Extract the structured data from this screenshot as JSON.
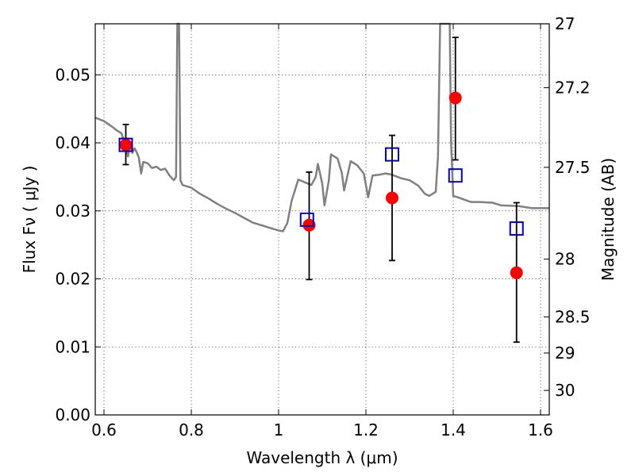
{
  "chart_data": {
    "type": "scatter",
    "title": "",
    "xlabel": "Wavelength  λ (μm)",
    "ylabel": "Flux  Fν  ( μJy )",
    "y2label": "Magnitude (AB)",
    "xlim": [
      0.58,
      1.62
    ],
    "ylim": [
      0.0,
      0.0575
    ],
    "grid": true,
    "x_ticks": [
      0.6,
      0.8,
      1.0,
      1.2,
      1.4,
      1.6
    ],
    "x_tick_labels": [
      "0.6",
      "0.8",
      "1",
      "1.2",
      "1.4",
      "1.6"
    ],
    "y_ticks": [
      0.0,
      0.01,
      0.02,
      0.03,
      0.04,
      0.05
    ],
    "y_tick_labels": [
      "0.00",
      "0.01",
      "0.02",
      "0.03",
      "0.04",
      "0.05"
    ],
    "y2_ticks": [
      {
        "mag": "27",
        "flux": 0.0575
      },
      {
        "mag": "27.2",
        "flux": 0.0481
      },
      {
        "mag": "27.5",
        "flux": 0.0364
      },
      {
        "mag": "28",
        "flux": 0.0229
      },
      {
        "mag": "28.5",
        "flux": 0.0144
      },
      {
        "mag": "29",
        "flux": 0.0091
      },
      {
        "mag": "30",
        "flux": 0.0036
      }
    ],
    "series": [
      {
        "style": "line",
        "color": "#808080",
        "points": [
          [
            0.58,
            0.0437
          ],
          [
            0.6,
            0.0432
          ],
          [
            0.62,
            0.0423
          ],
          [
            0.63,
            0.0418
          ],
          [
            0.64,
            0.0414
          ],
          [
            0.645,
            0.0405
          ],
          [
            0.65,
            0.0395
          ],
          [
            0.655,
            0.038
          ],
          [
            0.66,
            0.0398
          ],
          [
            0.665,
            0.0385
          ],
          [
            0.67,
            0.0392
          ],
          [
            0.675,
            0.0386
          ],
          [
            0.68,
            0.0378
          ],
          [
            0.685,
            0.0355
          ],
          [
            0.69,
            0.0372
          ],
          [
            0.7,
            0.037
          ],
          [
            0.71,
            0.0363
          ],
          [
            0.72,
            0.0365
          ],
          [
            0.73,
            0.036
          ],
          [
            0.74,
            0.0362
          ],
          [
            0.75,
            0.0352
          ],
          [
            0.76,
            0.0345
          ],
          [
            0.765,
            0.035
          ],
          [
            0.768,
            0.058
          ],
          [
            0.772,
            0.058
          ],
          [
            0.775,
            0.0345
          ],
          [
            0.78,
            0.0338
          ],
          [
            0.8,
            0.0334
          ],
          [
            0.82,
            0.0325
          ],
          [
            0.84,
            0.0318
          ],
          [
            0.86,
            0.031
          ],
          [
            0.88,
            0.0303
          ],
          [
            0.9,
            0.0297
          ],
          [
            0.92,
            0.029
          ],
          [
            0.94,
            0.0283
          ],
          [
            0.96,
            0.0279
          ],
          [
            0.98,
            0.0275
          ],
          [
            1.0,
            0.0271
          ],
          [
            1.01,
            0.027
          ],
          [
            1.02,
            0.0282
          ],
          [
            1.03,
            0.0315
          ],
          [
            1.045,
            0.0346
          ],
          [
            1.06,
            0.0342
          ],
          [
            1.075,
            0.0338
          ],
          [
            1.085,
            0.035
          ],
          [
            1.09,
            0.0369
          ],
          [
            1.1,
            0.034
          ],
          [
            1.105,
            0.0308
          ],
          [
            1.115,
            0.0345
          ],
          [
            1.12,
            0.0383
          ],
          [
            1.135,
            0.0377
          ],
          [
            1.145,
            0.0355
          ],
          [
            1.15,
            0.033
          ],
          [
            1.165,
            0.0373
          ],
          [
            1.18,
            0.0367
          ],
          [
            1.195,
            0.0355
          ],
          [
            1.205,
            0.032
          ],
          [
            1.215,
            0.0352
          ],
          [
            1.23,
            0.0353
          ],
          [
            1.245,
            0.0355
          ],
          [
            1.26,
            0.0353
          ],
          [
            1.28,
            0.0348
          ],
          [
            1.3,
            0.0345
          ],
          [
            1.32,
            0.0337
          ],
          [
            1.335,
            0.0325
          ],
          [
            1.345,
            0.0322
          ],
          [
            1.36,
            0.0328
          ],
          [
            1.365,
            0.038
          ],
          [
            1.37,
            0.058
          ],
          [
            1.392,
            0.058
          ],
          [
            1.395,
            0.04
          ],
          [
            1.4,
            0.0322
          ],
          [
            1.41,
            0.032
          ],
          [
            1.44,
            0.0313
          ],
          [
            1.46,
            0.0313
          ],
          [
            1.49,
            0.0312
          ],
          [
            1.51,
            0.0308
          ],
          [
            1.55,
            0.0307
          ],
          [
            1.58,
            0.0304
          ],
          [
            1.62,
            0.0304
          ]
        ]
      },
      {
        "style": "errorbar",
        "color": "#000000",
        "points": [
          {
            "x": 0.65,
            "lo": 0.0368,
            "hi": 0.0427
          },
          {
            "x": 1.07,
            "lo": 0.0199,
            "hi": 0.0357
          },
          {
            "x": 1.26,
            "lo": 0.0227,
            "hi": 0.0411
          },
          {
            "x": 1.405,
            "lo": 0.0375,
            "hi": 0.0555
          },
          {
            "x": 1.545,
            "lo": 0.0107,
            "hi": 0.0312
          }
        ]
      },
      {
        "style": "circle",
        "color": "#ff0000",
        "points": [
          [
            0.65,
            0.0397
          ],
          [
            1.07,
            0.0279
          ],
          [
            1.26,
            0.0319
          ],
          [
            1.405,
            0.0466
          ],
          [
            1.545,
            0.0209
          ]
        ]
      },
      {
        "style": "square",
        "color": "#0000cc",
        "points": [
          [
            0.65,
            0.0397
          ],
          [
            1.065,
            0.0287
          ],
          [
            1.26,
            0.0383
          ],
          [
            1.405,
            0.0352
          ],
          [
            1.545,
            0.0274
          ]
        ]
      }
    ]
  }
}
